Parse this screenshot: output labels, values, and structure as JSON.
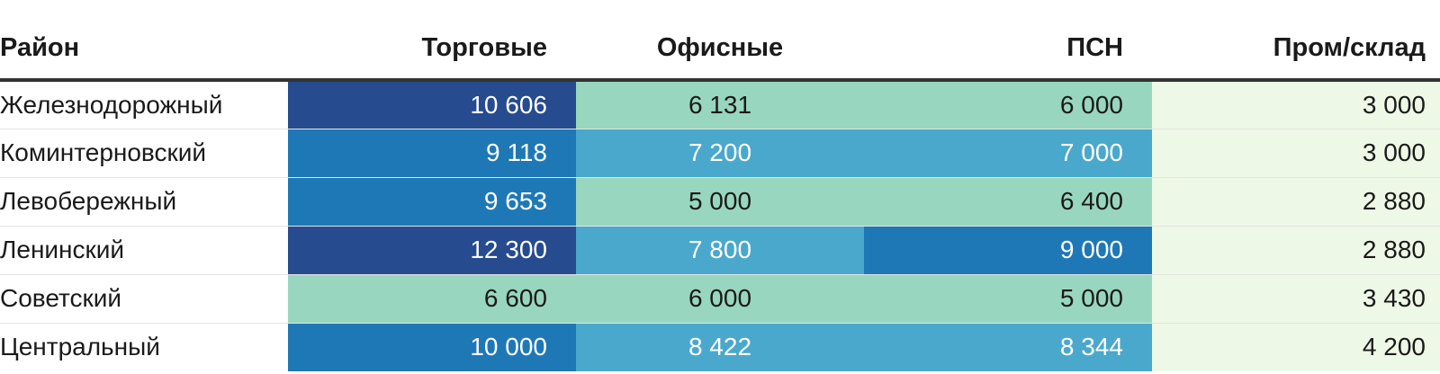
{
  "chart_data": {
    "type": "table",
    "columns": [
      "Район",
      "Торговые",
      "Офисные",
      "ПСН",
      "Пром/склад"
    ],
    "rows": [
      {
        "district": "Железнодорожный",
        "values": [
          "10 606",
          "6 131",
          "6 000",
          "3 000"
        ],
        "colors": [
          "#264b8e",
          "#99d6c0",
          "#99d6c0",
          "#eef8e6"
        ]
      },
      {
        "district": "Коминтерновский",
        "values": [
          "9 118",
          "7 200",
          "7 000",
          "3 000"
        ],
        "colors": [
          "#1f78b6",
          "#4aa8cc",
          "#4aa8cc",
          "#eef8e6"
        ]
      },
      {
        "district": "Левобережный",
        "values": [
          "9 653",
          "5 000",
          "6 400",
          "2 880"
        ],
        "colors": [
          "#1f78b6",
          "#99d6c0",
          "#99d6c0",
          "#eef8e6"
        ]
      },
      {
        "district": "Ленинский",
        "values": [
          "12 300",
          "7 800",
          "9 000",
          "2 880"
        ],
        "colors": [
          "#264b8e",
          "#4aa8cc",
          "#1f78b6",
          "#eef8e6"
        ]
      },
      {
        "district": "Советский",
        "values": [
          "6 600",
          "6 000",
          "5 000",
          "3 430"
        ],
        "colors": [
          "#99d6c0",
          "#99d6c0",
          "#99d6c0",
          "#eef8e6"
        ]
      },
      {
        "district": "Центральный",
        "values": [
          "10 000",
          "8 422",
          "8 344",
          "4 200"
        ],
        "colors": [
          "#1f78b6",
          "#4aa8cc",
          "#4aa8cc",
          "#eef8e6"
        ]
      }
    ]
  },
  "text_colors": {
    "dark": "#1a1a1a",
    "light": "#ffffff"
  }
}
